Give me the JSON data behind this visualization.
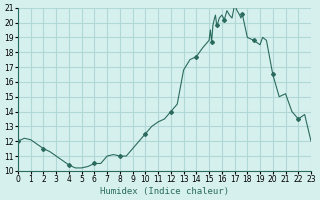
{
  "xlabel": "Humidex (Indice chaleur)",
  "ylabel": "",
  "xlim": [
    0,
    23
  ],
  "ylim": [
    10,
    21
  ],
  "yticks": [
    10,
    11,
    12,
    13,
    14,
    15,
    16,
    17,
    18,
    19,
    20,
    21
  ],
  "xticks": [
    0,
    1,
    2,
    3,
    4,
    5,
    6,
    7,
    8,
    9,
    10,
    11,
    12,
    13,
    14,
    15,
    16,
    17,
    18,
    19,
    20,
    21,
    22,
    23
  ],
  "bg_color": "#d6f0ee",
  "grid_color": "#b0d8d4",
  "line_color": "#2a6b5e",
  "marker_color": "#2a6b5e",
  "x": [
    0,
    0.5,
    1,
    1.5,
    2,
    2.5,
    3,
    3.5,
    4,
    4.5,
    5,
    5.5,
    6,
    6.5,
    7,
    7.5,
    8,
    8.5,
    9,
    9.5,
    10,
    10.5,
    11,
    11.5,
    12,
    12.5,
    13,
    13.5,
    14,
    14.5,
    15,
    15.1,
    15.2,
    15.3,
    15.4,
    15.5,
    15.6,
    15.7,
    15.8,
    16,
    16.2,
    16.4,
    16.6,
    16.8,
    17,
    17.2,
    17.4,
    17.5,
    17.6,
    17.7,
    17.8,
    18,
    18.5,
    19,
    19.2,
    19.5,
    20,
    20.5,
    21,
    21.5,
    22,
    22.5,
    23
  ],
  "y": [
    12.0,
    12.2,
    12.1,
    11.8,
    11.5,
    11.3,
    11.0,
    10.7,
    10.4,
    10.2,
    10.2,
    10.3,
    10.5,
    10.5,
    11.0,
    11.1,
    11.0,
    11.0,
    11.5,
    12.0,
    12.5,
    13.0,
    13.3,
    13.5,
    14.0,
    14.5,
    16.8,
    17.5,
    17.7,
    18.3,
    18.8,
    19.5,
    18.7,
    19.8,
    20.2,
    20.5,
    19.8,
    20.0,
    20.3,
    20.5,
    20.2,
    20.8,
    20.5,
    20.3,
    21.2,
    20.8,
    20.5,
    20.3,
    20.6,
    20.2,
    19.8,
    19.0,
    18.8,
    18.5,
    19.0,
    18.8,
    16.5,
    15.0,
    15.2,
    14.0,
    13.5,
    13.8,
    12.0
  ]
}
